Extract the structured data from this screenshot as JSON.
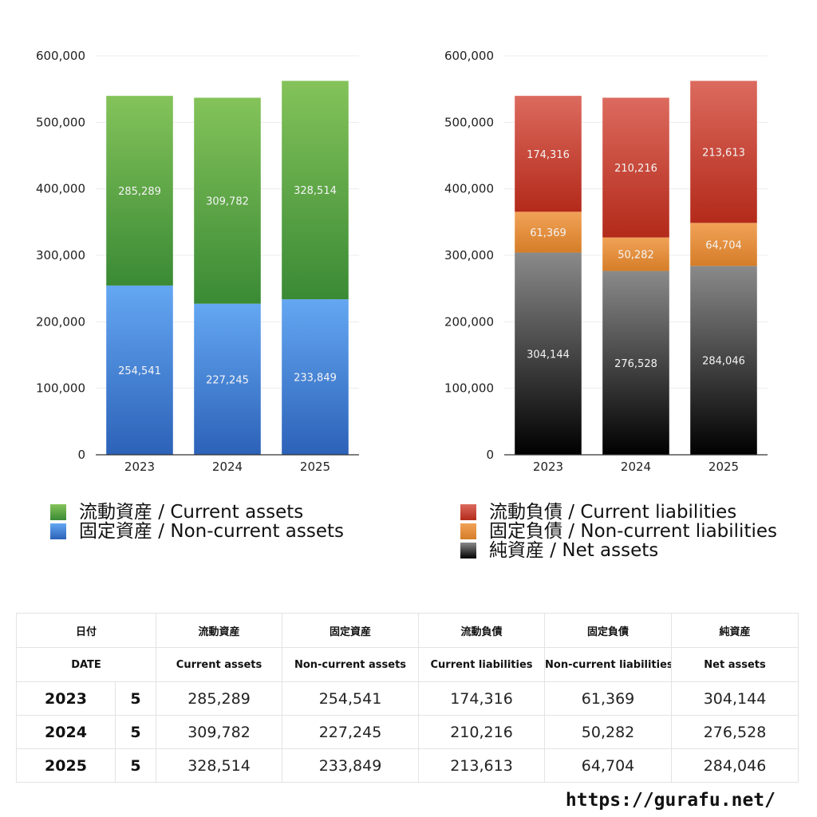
{
  "colors": {
    "current_assets": [
      "#84c35a",
      "#3a8a35"
    ],
    "non_current_assets": [
      "#64a7f2",
      "#2c62b8"
    ],
    "current_liabilities": [
      "#dc6a5e",
      "#b32a1a"
    ],
    "non_current_liabilities": [
      "#f1a257",
      "#d57d28"
    ],
    "net_assets": [
      "#8a8a8a",
      "#000000"
    ],
    "axis": "#333333",
    "grid": "#ececec"
  },
  "chart_data": [
    {
      "type": "bar",
      "stacked": true,
      "categories": [
        "2023",
        "2024",
        "2025"
      ],
      "ylim": [
        0,
        600000
      ],
      "yticks": [
        "0",
        "100,000",
        "200,000",
        "300,000",
        "400,000",
        "500,000",
        "600,000"
      ],
      "grid": true,
      "series": [
        {
          "name": "固定資産 / Non-current assets",
          "values": [
            254541,
            227245,
            233849
          ],
          "labels": [
            "254,541",
            "227,245",
            "233,849"
          ],
          "color_key": "non_current_assets"
        },
        {
          "name": "流動資産 / Current assets",
          "values": [
            285289,
            309782,
            328514
          ],
          "labels": [
            "285,289",
            "309,782",
            "328,514"
          ],
          "color_key": "current_assets"
        }
      ]
    },
    {
      "type": "bar",
      "stacked": true,
      "categories": [
        "2023",
        "2024",
        "2025"
      ],
      "ylim": [
        0,
        600000
      ],
      "yticks": [
        "0",
        "100,000",
        "200,000",
        "300,000",
        "400,000",
        "500,000",
        "600,000"
      ],
      "grid": true,
      "series": [
        {
          "name": "純資産 / Net assets",
          "values": [
            304144,
            276528,
            284046
          ],
          "labels": [
            "304,144",
            "276,528",
            "284,046"
          ],
          "color_key": "net_assets"
        },
        {
          "name": "固定負債 / Non-current liabilities",
          "values": [
            61369,
            50282,
            64704
          ],
          "labels": [
            "61,369",
            "50,282",
            "64,704"
          ],
          "color_key": "non_current_liabilities"
        },
        {
          "name": "流動負債 / Current liabilities",
          "values": [
            174316,
            210216,
            213613
          ],
          "labels": [
            "174,316",
            "210,216",
            "213,613"
          ],
          "color_key": "current_liabilities"
        }
      ]
    }
  ],
  "legend_left": [
    {
      "label": "流動資産 / Current assets",
      "color_key": "current_assets"
    },
    {
      "label": "固定資産 / Non-current assets",
      "color_key": "non_current_assets"
    }
  ],
  "legend_right": [
    {
      "label": "流動負債 / Current liabilities",
      "color_key": "current_liabilities"
    },
    {
      "label": "固定負債 / Non-current liabilities",
      "color_key": "non_current_liabilities"
    },
    {
      "label": "純資産 / Net assets",
      "color_key": "net_assets"
    }
  ],
  "table": {
    "header_jp": [
      "日付",
      "流動資産",
      "固定資産",
      "流動負債",
      "固定負債",
      "純資産"
    ],
    "header_en": [
      "DATE",
      "Current assets",
      "Non-current assets",
      "Current liabilities",
      "Non-current liabilities",
      "Net assets"
    ],
    "rows": [
      {
        "year": "2023",
        "count": "5",
        "values": [
          "285,289",
          "254,541",
          "174,316",
          "61,369",
          "304,144"
        ]
      },
      {
        "year": "2024",
        "count": "5",
        "values": [
          "309,782",
          "227,245",
          "210,216",
          "50,282",
          "276,528"
        ]
      },
      {
        "year": "2025",
        "count": "5",
        "values": [
          "328,514",
          "233,849",
          "213,613",
          "64,704",
          "284,046"
        ]
      }
    ]
  },
  "footer": {
    "url": "https://gurafu.net/"
  }
}
